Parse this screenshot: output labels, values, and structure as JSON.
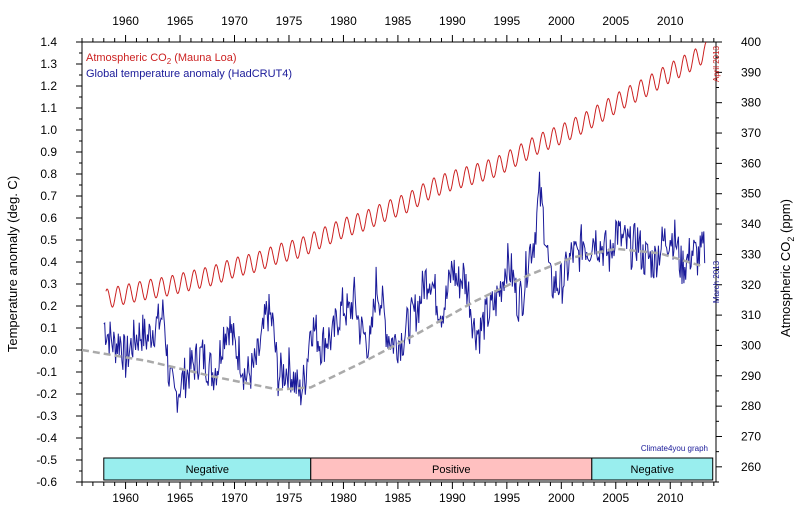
{
  "chart_data": {
    "type": "line",
    "x_ticks": [
      1960,
      1965,
      1970,
      1975,
      1980,
      1985,
      1990,
      1995,
      2000,
      2005,
      2010
    ],
    "xlim": [
      1956,
      2014.2
    ],
    "left_axis": {
      "label": "Temperature anomaly (deg. C)",
      "ylim": [
        -0.6,
        1.4
      ],
      "ticks": [
        "-0.6",
        "-0.5",
        "-0.4",
        "-0.3",
        "-0.2",
        "-0.1",
        "0.0",
        "0.1",
        "0.2",
        "0.3",
        "0.4",
        "0.5",
        "0.6",
        "0.7",
        "0.8",
        "0.9",
        "1.0",
        "1.1",
        "1.2",
        "1.3",
        "1.4"
      ]
    },
    "right_axis": {
      "label_main": "Atmospheric CO",
      "label_sub": "2",
      "label_unit": " (ppm)",
      "ylim": [
        255,
        400
      ],
      "ticks": [
        260,
        270,
        280,
        290,
        300,
        310,
        320,
        330,
        340,
        350,
        360,
        370,
        380,
        390,
        400
      ]
    },
    "legend": [
      {
        "label": "Atmospheric CO",
        "sub": "2",
        "suffix": " (Mauna Loa)",
        "color": "#cc2222"
      },
      {
        "label": "Global temperature anomaly (HadCRUT4)",
        "color": "#1a1a99"
      }
    ],
    "annotations": {
      "co2_end": "April 2013",
      "temp_end": "March 2013",
      "credit": "Climate4you graph"
    },
    "phases": [
      {
        "label": "Negative",
        "start": 1958,
        "end": 1977,
        "color": "#99eeee"
      },
      {
        "label": "Positive",
        "start": 1977,
        "end": 2002.8,
        "color": "#ffc0c0"
      },
      {
        "label": "Negative",
        "start": 2002.8,
        "end": 2013.9,
        "color": "#99eeee"
      }
    ],
    "series": [
      {
        "name": "Atmospheric CO2 (Mauna Loa)",
        "axis": "right",
        "color": "#cc2222",
        "x": [
          1958.2,
          1960,
          1962,
          1964,
          1966,
          1968,
          1970,
          1972,
          1974,
          1976,
          1978,
          1980,
          1982,
          1984,
          1986,
          1988,
          1990,
          1992,
          1994,
          1996,
          1998,
          2000,
          2002,
          2004,
          2006,
          2008,
          2010,
          2012,
          2013.3
        ],
        "values": [
          315.3,
          316.9,
          318.4,
          319.6,
          321.4,
          323.0,
          325.7,
          327.4,
          330.2,
          332.1,
          335.4,
          338.7,
          341.1,
          344.4,
          347.2,
          351.6,
          354.4,
          356.4,
          358.8,
          362.6,
          366.6,
          369.6,
          373.2,
          377.5,
          381.9,
          385.6,
          389.9,
          393.8,
          396.8
        ],
        "seasonal_amplitude_ppm": 3.2
      },
      {
        "name": "Global temperature anomaly (HadCRUT4)",
        "axis": "left",
        "color": "#1a1a99",
        "x": [
          1958,
          1958.5,
          1959,
          1959.5,
          1960,
          1960.5,
          1961,
          1961.5,
          1962,
          1962.5,
          1963,
          1963.5,
          1964,
          1964.5,
          1965,
          1965.5,
          1966,
          1966.5,
          1967,
          1967.5,
          1968,
          1968.5,
          1969,
          1969.5,
          1970,
          1970.5,
          1971,
          1971.5,
          1972,
          1972.5,
          1973,
          1973.5,
          1974,
          1974.5,
          1975,
          1975.5,
          1976,
          1976.5,
          1977,
          1977.5,
          1978,
          1978.5,
          1979,
          1979.5,
          1980,
          1980.5,
          1981,
          1981.5,
          1982,
          1982.5,
          1983,
          1983.5,
          1984,
          1984.5,
          1985,
          1985.5,
          1986,
          1986.5,
          1987,
          1987.5,
          1988,
          1988.5,
          1989,
          1989.5,
          1990,
          1990.5,
          1991,
          1991.5,
          1992,
          1992.5,
          1993,
          1993.5,
          1994,
          1994.5,
          1995,
          1995.5,
          1996,
          1996.5,
          1997,
          1997.5,
          1998,
          1998.5,
          1999,
          1999.5,
          2000,
          2000.5,
          2001,
          2001.5,
          2002,
          2002.5,
          2003,
          2003.5,
          2004,
          2004.5,
          2005,
          2005.5,
          2006,
          2006.5,
          2007,
          2007.5,
          2008,
          2008.5,
          2009,
          2009.5,
          2010,
          2010.5,
          2011,
          2011.5,
          2012,
          2012.5,
          2013.2
        ],
        "values": [
          0.12,
          0.06,
          0.02,
          0.05,
          -0.05,
          0.02,
          0.06,
          0.08,
          0.05,
          0.1,
          0.12,
          0.17,
          -0.12,
          -0.22,
          -0.16,
          -0.12,
          -0.08,
          -0.05,
          -0.02,
          -0.06,
          -0.1,
          -0.06,
          0.08,
          0.12,
          0.02,
          -0.02,
          -0.12,
          -0.1,
          -0.06,
          0.04,
          0.18,
          0.12,
          -0.12,
          -0.1,
          -0.08,
          -0.14,
          -0.2,
          -0.12,
          0.12,
          0.08,
          0.02,
          0.06,
          0.05,
          0.15,
          0.2,
          0.16,
          0.24,
          0.1,
          0.06,
          0.02,
          0.3,
          0.22,
          0.08,
          0.04,
          0.04,
          0.06,
          0.12,
          0.16,
          0.22,
          0.32,
          0.34,
          0.24,
          0.18,
          0.24,
          0.38,
          0.3,
          0.34,
          0.26,
          0.1,
          0.08,
          0.14,
          0.18,
          0.22,
          0.3,
          0.4,
          0.34,
          0.22,
          0.26,
          0.44,
          0.5,
          0.72,
          0.55,
          0.3,
          0.3,
          0.3,
          0.36,
          0.44,
          0.42,
          0.5,
          0.46,
          0.52,
          0.48,
          0.46,
          0.42,
          0.56,
          0.5,
          0.48,
          0.46,
          0.5,
          0.42,
          0.42,
          0.4,
          0.46,
          0.5,
          0.52,
          0.5,
          0.38,
          0.4,
          0.45,
          0.42,
          0.46
        ]
      }
    ]
  }
}
